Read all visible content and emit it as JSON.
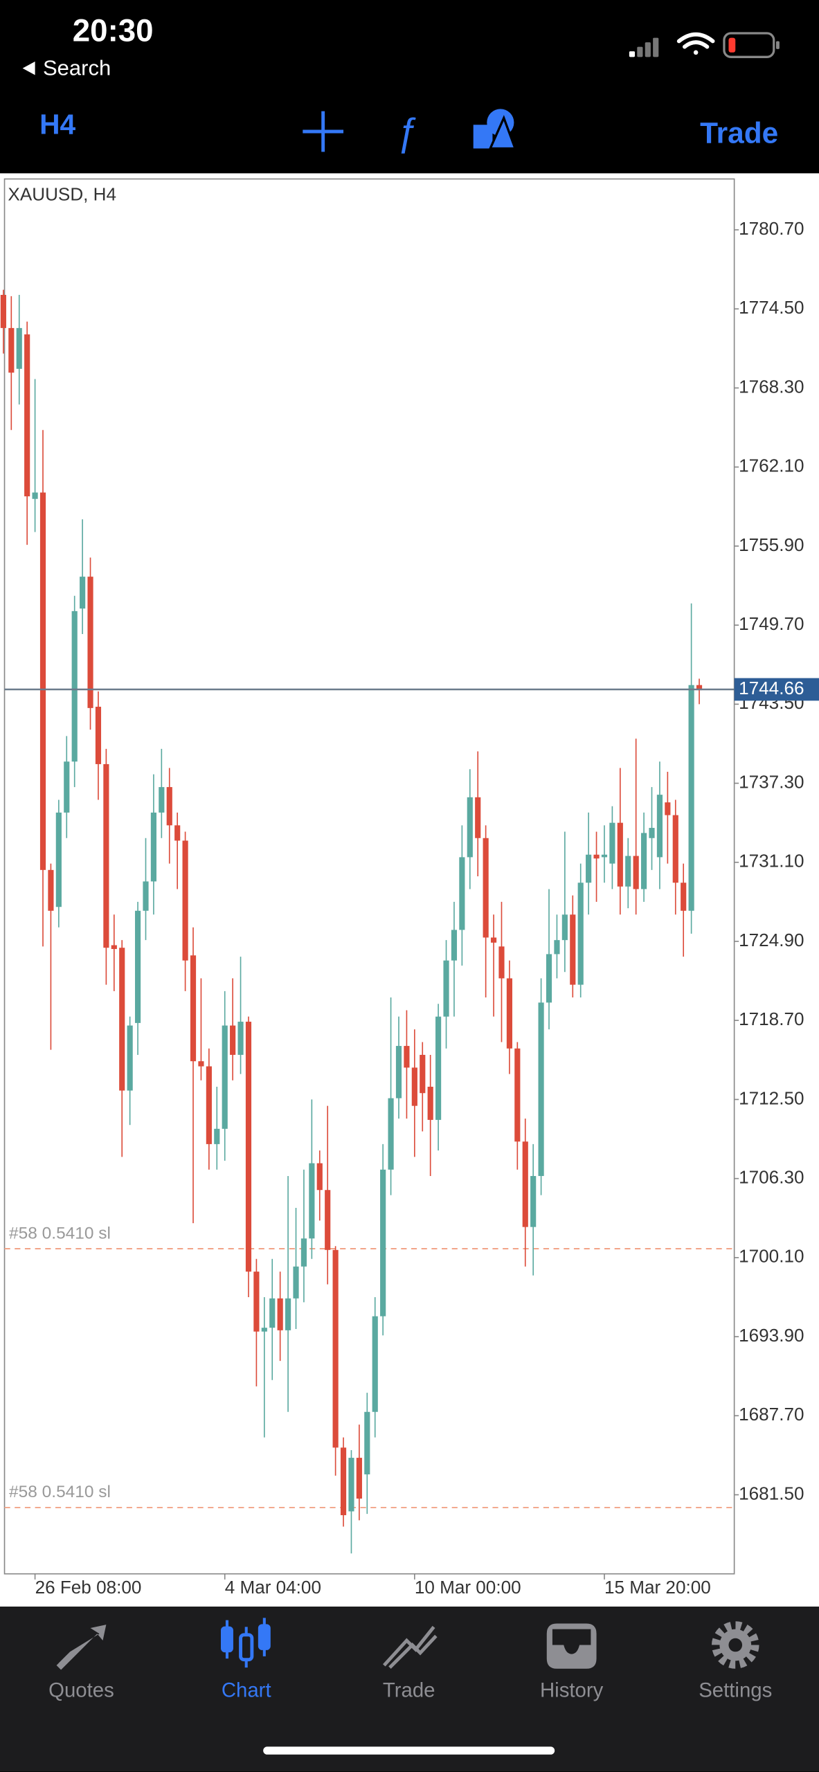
{
  "status_bar": {
    "time": "20:30",
    "back": "Search"
  },
  "toolbar": {
    "timeframe": "H4",
    "trade": "Trade"
  },
  "tab_bar": {
    "tabs": [
      "Quotes",
      "Chart",
      "Trade",
      "History",
      "Settings"
    ],
    "active": 1
  },
  "chart_data": {
    "type": "candlestick",
    "title": "XAUUSD, H4",
    "up_color": "#5aa9a0",
    "down_color": "#dc4b3a",
    "categories": [
      null,
      null,
      null,
      null,
      "26 Feb 08:00",
      null,
      null,
      null,
      null,
      null,
      null,
      null,
      null,
      null,
      null,
      null,
      null,
      null,
      null,
      null,
      null,
      null,
      null,
      null,
      null,
      null,
      null,
      null,
      "4 Mar 04:00",
      null,
      null,
      null,
      null,
      null,
      null,
      null,
      null,
      null,
      null,
      null,
      null,
      null,
      null,
      null,
      null,
      null,
      null,
      null,
      null,
      null,
      null,
      null,
      "10 Mar 00:00",
      null,
      null,
      null,
      null,
      null,
      null,
      null,
      null,
      null,
      null,
      null,
      null,
      null,
      null,
      null,
      null,
      null,
      null,
      null,
      null,
      null,
      null,
      null,
      "15 Mar 20:00",
      null,
      null,
      null,
      null,
      null,
      null,
      null,
      null,
      null,
      null,
      null,
      null
    ],
    "open": [
      1775.6,
      1773,
      1769.8,
      1772.5,
      1759.6,
      1760.1,
      1730.5,
      1727.6,
      1735,
      1739,
      1751,
      1753.5,
      1743.3,
      1738.8,
      1724.6,
      1724.4,
      1713.2,
      1718.5,
      1727.3,
      1729.6,
      1735,
      1737,
      1734,
      1732.8,
      1723.8,
      1715.5,
      1715.1,
      1709,
      1710.2,
      1718.3,
      1716,
      1718.6,
      1699,
      1694.3,
      1694.6,
      1696.9,
      1694.4,
      1696.9,
      1699.4,
      1701.6,
      1707.5,
      1705.4,
      1700.7,
      1685.2,
      1680.2,
      1684.4,
      1683.1,
      1688,
      1695.5,
      1707,
      1712.6,
      1716.7,
      1715,
      1716,
      1713.5,
      1710.9,
      1719,
      1723.4,
      1725.8,
      1731.5,
      1736.2,
      1733,
      1725.2,
      1724.5,
      1722,
      1716.5,
      1709.2,
      1702.5,
      1706.5,
      1720.1,
      1723.9,
      1725,
      1727,
      1721.5,
      1729.5,
      1731.7,
      1731.5,
      1731,
      1734.2,
      1729.2,
      1731.6,
      1729,
      1733,
      1731.5,
      1735.8,
      1734.8,
      1729.5,
      1727.3,
      1745
    ],
    "high": [
      1776,
      1775.5,
      1775.6,
      1773.5,
      1769,
      1765,
      1731,
      1736,
      1741,
      1752,
      1758,
      1755,
      1744.5,
      1740,
      1727,
      1725,
      1719,
      1728,
      1733,
      1738,
      1740,
      1738.5,
      1735,
      1733.5,
      1726,
      1722,
      1716.5,
      1713.5,
      1721,
      1722,
      1723.7,
      1719,
      1700,
      1697,
      1700,
      1699,
      1706.5,
      1704,
      1707,
      1712.5,
      1708.5,
      1712,
      1701,
      1686,
      1685,
      1687,
      1689.5,
      1697,
      1709,
      1720.5,
      1719,
      1719.5,
      1718,
      1717,
      1716,
      1720,
      1725,
      1728,
      1734,
      1738.4,
      1739.8,
      1734,
      1727,
      1728,
      1723.4,
      1717,
      1711,
      1709,
      1722,
      1729,
      1727,
      1733.5,
      1728.5,
      1731,
      1735,
      1733.5,
      1734,
      1735.5,
      1738.5,
      1733,
      1740.8,
      1735,
      1737,
      1739,
      1738.2,
      1736,
      1731,
      1751.4,
      1745.5
    ],
    "low": [
      1771,
      1765,
      1767,
      1756,
      1757,
      1724.5,
      1716.4,
      1726,
      1733,
      1737,
      1749,
      1741.5,
      1736,
      1721.5,
      1721,
      1708,
      1710.5,
      1716,
      1725,
      1727,
      1733,
      1731,
      1729,
      1721,
      1702.8,
      1714,
      1707,
      1707,
      1707.7,
      1714,
      1714.5,
      1697,
      1690,
      1686,
      1690.5,
      1692,
      1688,
      1694.5,
      1696.6,
      1700,
      1703,
      1698,
      1683,
      1679,
      1676.9,
      1679.5,
      1680,
      1686,
      1694,
      1705,
      1711,
      1711,
      1708,
      1710,
      1706.5,
      1708.5,
      1716.5,
      1719,
      1723,
      1729,
      1730,
      1720.5,
      1719,
      1717,
      1714.5,
      1707,
      1699.4,
      1698.7,
      1705,
      1718,
      1722,
      1722.5,
      1720.5,
      1720.5,
      1727,
      1728,
      1729.5,
      1729,
      1727,
      1727.5,
      1727,
      1728,
      1730.5,
      1729,
      1731,
      1727,
      1723.7,
      1725.5,
      1743.5
    ],
    "close": [
      1773,
      1769.5,
      1773,
      1759.8,
      1760.1,
      1730.5,
      1727.3,
      1735,
      1739,
      1750.8,
      1753.5,
      1743.2,
      1738.8,
      1724.4,
      1724.3,
      1713.2,
      1718.3,
      1727.3,
      1729.6,
      1735,
      1737,
      1734,
      1732.8,
      1723.4,
      1715.5,
      1715.1,
      1709,
      1710.2,
      1718.3,
      1716,
      1718.6,
      1699,
      1694.3,
      1694.6,
      1696.9,
      1694.4,
      1696.9,
      1699.4,
      1701.6,
      1707.5,
      1705.4,
      1700.7,
      1685.2,
      1679.9,
      1684.4,
      1681.2,
      1688,
      1695.5,
      1707,
      1712.6,
      1716.7,
      1715,
      1712,
      1713,
      1710.9,
      1719,
      1723.4,
      1725.8,
      1731.5,
      1736.2,
      1733,
      1725.2,
      1724.8,
      1722,
      1716.5,
      1709.2,
      1702.5,
      1706.5,
      1720.1,
      1723.9,
      1725,
      1727,
      1721.5,
      1729.5,
      1731.7,
      1731.4,
      1731.7,
      1734.2,
      1729.2,
      1731.6,
      1729,
      1733.4,
      1733.8,
      1736.4,
      1734.8,
      1729.5,
      1727.3,
      1745,
      1744.6
    ],
    "ylim": [
      1675.3,
      1784.69
    ],
    "yticks": [
      {
        "value": 1780.7,
        "label": "1780.70"
      },
      {
        "value": 1774.5,
        "label": "1774.50"
      },
      {
        "value": 1768.3,
        "label": "1768.30"
      },
      {
        "value": 1762.1,
        "label": "1762.10"
      },
      {
        "value": 1755.9,
        "label": "1755.90"
      },
      {
        "value": 1749.7,
        "label": "1749.70"
      },
      {
        "value": 1743.5,
        "label": "1743.50"
      },
      {
        "value": 1737.3,
        "label": "1737.30"
      },
      {
        "value": 1731.1,
        "label": "1731.10"
      },
      {
        "value": 1724.9,
        "label": "1724.90"
      },
      {
        "value": 1718.7,
        "label": "1718.70"
      },
      {
        "value": 1712.5,
        "label": "1712.50"
      },
      {
        "value": 1706.3,
        "label": "1706.30"
      },
      {
        "value": 1700.1,
        "label": "1700.10"
      },
      {
        "value": 1693.9,
        "label": "1693.90"
      },
      {
        "value": 1687.7,
        "label": "1687.70"
      },
      {
        "value": 1681.5,
        "label": "1681.50"
      }
    ],
    "last_price": 1744.66,
    "last_price_color": "#2d5d96",
    "levels": [
      {
        "value": 1700.8,
        "label": "#58 0.5410 sl"
      },
      {
        "value": 1680.5,
        "label": "#58 0.5410 sl"
      }
    ],
    "level_color": "#f2a488"
  }
}
